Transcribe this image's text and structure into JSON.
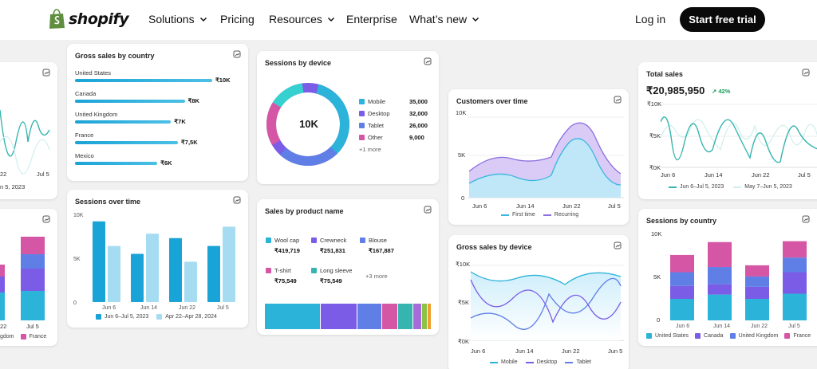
{
  "nav": {
    "brand": "shopify",
    "items": [
      "Solutions",
      "Pricing",
      "Resources",
      "Enterprise",
      "What’s new"
    ],
    "login": "Log in",
    "cta": "Start free trial"
  },
  "colors": {
    "accent": "#2bb3d9",
    "mobile": "#2bb3d9",
    "desktop": "#7b5ce6",
    "tablet": "#5f7fe6",
    "other": "#d556a5",
    "teal": "#36b5b0"
  },
  "left_partial": {
    "top_axis": [
      "22",
      "Jul 5"
    ],
    "top_legend": "n 5, 2023",
    "bottom_axis": [
      "22",
      "Jul 5"
    ],
    "bottom_legend": [
      "gdom",
      "France"
    ]
  },
  "gross_sales_country": {
    "title": "Gross sales by country",
    "chart_data": {
      "type": "bar",
      "categories": [
        "United States",
        "Canada",
        "United Kingdom",
        "France",
        "Mexico"
      ],
      "values": [
        10000,
        8000,
        7000,
        7500,
        6000
      ],
      "value_labels": [
        "₹10K",
        "₹8K",
        "₹7K",
        "₹7,5K",
        "₹6K"
      ]
    }
  },
  "sessions_over_time": {
    "title": "Sessions over time",
    "chart_data": {
      "type": "bar",
      "categories": [
        "Jun 6",
        "Jun 14",
        "Jun 22",
        "Jul 5"
      ],
      "y_ticks": [
        "10K",
        "5K",
        "0"
      ],
      "ylim": [
        0,
        10000
      ],
      "series": [
        {
          "name": "Jun 6–Jul 5, 2023",
          "values": [
            9200,
            5500,
            7300,
            6400
          ]
        },
        {
          "name": "Apr 22–Apr 28, 2024",
          "values": [
            6400,
            7800,
            4600,
            8600
          ]
        }
      ]
    }
  },
  "sessions_device": {
    "title": "Sessions by device",
    "center": "10K",
    "items": [
      {
        "label": "Mobile",
        "value": "35,000"
      },
      {
        "label": "Desktop",
        "value": "32,000"
      },
      {
        "label": "Tablet",
        "value": "26,000"
      },
      {
        "label": "Other",
        "value": "9,000"
      }
    ],
    "more": "+1 more"
  },
  "sales_product": {
    "title": "Sales by product name",
    "items": [
      {
        "label": "Wool cap",
        "value": "₹419,719"
      },
      {
        "label": "Crewneck",
        "value": "₹251,831"
      },
      {
        "label": "Blouse",
        "value": "₹167,887"
      },
      {
        "label": "T-shirt",
        "value": "₹75,549"
      },
      {
        "label": "Long sleeve",
        "value": "₹75,549"
      }
    ],
    "more": "+3 more"
  },
  "customers_time": {
    "title": "Customers over time",
    "y_ticks": [
      "10K",
      "5K",
      "0"
    ],
    "x_ticks": [
      "Jun 6",
      "Jun 14",
      "Jun 22",
      "Jul 5"
    ],
    "legend": [
      "First time",
      "Recurring"
    ]
  },
  "gross_device": {
    "title": "Gross sales by device",
    "y_ticks": [
      "₹10K",
      "₹5K",
      "₹0K"
    ],
    "x_ticks": [
      "Jun 6",
      "Jun 14",
      "Jun 22",
      "Jun 5"
    ],
    "legend": [
      "Mobile",
      "Desktop",
      "Tablet"
    ]
  },
  "total_sales": {
    "title": "Total sales",
    "value": "₹20,985,950",
    "change": "↗ 42%",
    "y_ticks": [
      "₹10K",
      "₹5K",
      "₹0K"
    ],
    "x_ticks": [
      "Jun 6",
      "Jun 14",
      "Jun 22",
      "Jul 5"
    ],
    "legend": [
      "Jun 6–Jul 5, 2023",
      "May 7–Jun 5, 2023"
    ]
  },
  "sessions_country": {
    "title": "Sessions by country",
    "y_ticks": [
      "10K",
      "5K",
      "0"
    ],
    "chart_data": {
      "type": "bar",
      "categories": [
        "Jun 6",
        "Jun 14",
        "Jun 22",
        "Jul 5"
      ],
      "ylim": [
        0,
        10000
      ],
      "series": [
        {
          "name": "United States",
          "values": [
            2500,
            3000,
            2500,
            3100
          ]
        },
        {
          "name": "Canada",
          "values": [
            1500,
            1200,
            1400,
            2500
          ]
        },
        {
          "name": "United Kingdom",
          "values": [
            1600,
            2000,
            1200,
            1700
          ]
        },
        {
          "name": "France",
          "values": [
            2000,
            2900,
            1300,
            1900
          ]
        }
      ]
    }
  }
}
